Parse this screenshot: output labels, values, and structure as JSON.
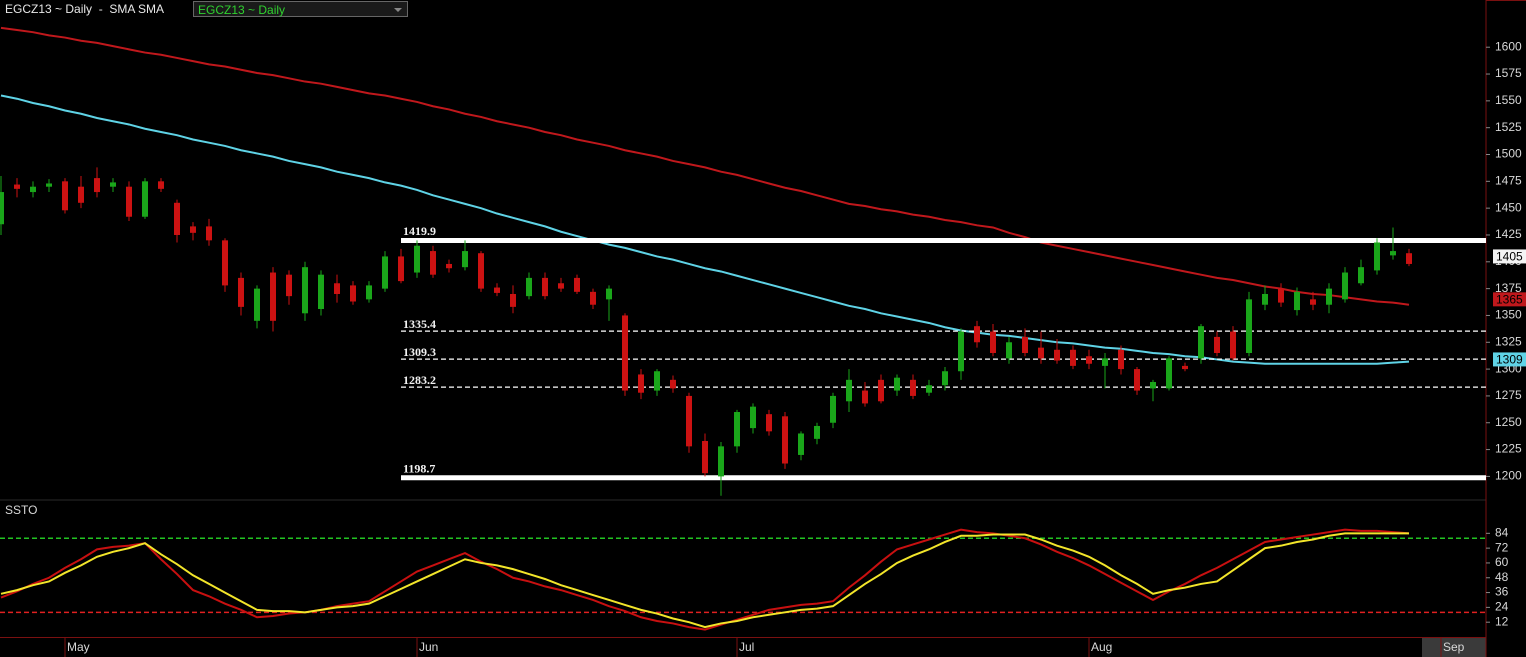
{
  "header": {
    "symbol_title": "EGCZ13 ~ Daily  -  SMA SMA",
    "dropdown": "EGCZ13 ~ Daily"
  },
  "chart_data": [
    {
      "type": "candlestick",
      "categories": [
        null,
        null,
        null,
        null,
        "May",
        null,
        null,
        null,
        null,
        null,
        null,
        null,
        null,
        null,
        null,
        null,
        null,
        null,
        null,
        null,
        null,
        null,
        null,
        null,
        null,
        null,
        "Jun",
        null,
        null,
        null,
        null,
        null,
        null,
        null,
        null,
        null,
        null,
        null,
        null,
        null,
        null,
        null,
        null,
        null,
        null,
        null,
        "Jul",
        null,
        null,
        null,
        null,
        null,
        null,
        null,
        null,
        null,
        null,
        null,
        null,
        null,
        null,
        null,
        null,
        null,
        null,
        null,
        null,
        null,
        "Aug",
        null,
        null,
        null,
        null,
        null,
        null,
        null,
        null,
        null,
        null,
        null,
        null,
        null,
        null,
        null,
        null,
        null,
        null,
        null,
        null,
        null,
        "Sep"
      ],
      "open": [
        1435,
        1472,
        1465,
        1470,
        1475,
        1470,
        1478,
        1470,
        1470,
        1442,
        1475,
        1455,
        1433,
        1433,
        1420,
        1385,
        1345,
        1390,
        1388,
        1352,
        1356,
        1380,
        1378,
        1365,
        1375,
        1405,
        1390,
        1410,
        1398,
        1395,
        1408,
        1376,
        1370,
        1368,
        1385,
        1380,
        1385,
        1372,
        1365,
        1350,
        1295,
        1280,
        1290,
        1275,
        1233,
        1200,
        1228,
        1245,
        1258,
        1256,
        1220,
        1235,
        1250,
        1270,
        1280,
        1290,
        1280,
        1290,
        1278,
        1285,
        1298,
        1340,
        1335,
        1310,
        1330,
        1320,
        1318,
        1318,
        1312,
        1303,
        1318,
        1300,
        1282,
        1282,
        1303,
        1310,
        1330,
        1335,
        1315,
        1360,
        1375,
        1355,
        1365,
        1360,
        1365,
        1380,
        1392,
        1406,
        1408,
        null,
        null
      ],
      "high": [
        1480,
        1478,
        1475,
        1477,
        1478,
        1480,
        1488,
        1478,
        1475,
        1478,
        1478,
        1458,
        1437,
        1440,
        1422,
        1390,
        1378,
        1395,
        1392,
        1400,
        1392,
        1388,
        1382,
        1382,
        1410,
        1412,
        1420,
        1415,
        1402,
        1420,
        1410,
        1380,
        1378,
        1390,
        1390,
        1385,
        1388,
        1375,
        1378,
        1352,
        1300,
        1300,
        1294,
        1278,
        1240,
        1232,
        1262,
        1268,
        1262,
        1260,
        1242,
        1250,
        1278,
        1300,
        1288,
        1295,
        1295,
        1295,
        1290,
        1302,
        1338,
        1345,
        1342,
        1330,
        1338,
        1335,
        1328,
        1322,
        1318,
        1315,
        1322,
        1302,
        1290,
        1312,
        1306,
        1342,
        1335,
        1340,
        1372,
        1378,
        1380,
        1376,
        1372,
        1380,
        1395,
        1402,
        1422,
        1432,
        1412,
        null,
        null
      ],
      "low": [
        1425,
        1460,
        1460,
        1465,
        1445,
        1450,
        1460,
        1465,
        1438,
        1440,
        1465,
        1418,
        1420,
        1415,
        1372,
        1350,
        1338,
        1335,
        1360,
        1345,
        1350,
        1362,
        1360,
        1362,
        1372,
        1380,
        1385,
        1385,
        1390,
        1392,
        1372,
        1368,
        1352,
        1365,
        1365,
        1372,
        1370,
        1356,
        1345,
        1275,
        1272,
        1275,
        1278,
        1222,
        1200,
        1182,
        1222,
        1240,
        1238,
        1207,
        1215,
        1230,
        1245,
        1260,
        1265,
        1268,
        1275,
        1272,
        1275,
        1280,
        1290,
        1320,
        1312,
        1305,
        1312,
        1305,
        1305,
        1300,
        1300,
        1282,
        1295,
        1276,
        1270,
        1280,
        1298,
        1305,
        1312,
        1308,
        1312,
        1355,
        1358,
        1350,
        1355,
        1352,
        1362,
        1378,
        1388,
        1402,
        1396,
        null,
        null
      ],
      "close": [
        1465,
        1468,
        1470,
        1473,
        1448,
        1455,
        1465,
        1474,
        1442,
        1475,
        1468,
        1425,
        1427,
        1420,
        1378,
        1358,
        1375,
        1345,
        1368,
        1395,
        1388,
        1370,
        1363,
        1378,
        1405,
        1382,
        1415,
        1388,
        1394,
        1410,
        1375,
        1371,
        1358,
        1385,
        1368,
        1375,
        1372,
        1360,
        1375,
        1280,
        1278,
        1298,
        1282,
        1228,
        1203,
        1228,
        1260,
        1265,
        1242,
        1212,
        1240,
        1247,
        1275,
        1290,
        1268,
        1270,
        1292,
        1275,
        1285,
        1298,
        1335,
        1325,
        1315,
        1325,
        1315,
        1310,
        1308,
        1303,
        1305,
        1310,
        1300,
        1280,
        1288,
        1310,
        1300,
        1340,
        1315,
        1310,
        1365,
        1370,
        1362,
        1372,
        1360,
        1375,
        1390,
        1395,
        1418,
        1410,
        1398,
        null,
        null
      ],
      "up_color": "#1aa61a",
      "down_color": "#cc1212",
      "overlays": [
        {
          "color": "#c0181c",
          "values": [
            1618,
            1616,
            1614,
            1611,
            1609,
            1606,
            1604,
            1601,
            1598,
            1595,
            1593,
            1590,
            1587,
            1584,
            1582,
            1579,
            1576,
            1574,
            1571,
            1568,
            1566,
            1563,
            1560,
            1557,
            1555,
            1552,
            1549,
            1545,
            1542,
            1538,
            1535,
            1531,
            1528,
            1525,
            1521,
            1518,
            1514,
            1511,
            1508,
            1504,
            1501,
            1498,
            1494,
            1491,
            1488,
            1484,
            1481,
            1477,
            1473,
            1469,
            1466,
            1462,
            1458,
            1454,
            1452,
            1449,
            1447,
            1444,
            1442,
            1439,
            1437,
            1434,
            1432,
            1427,
            1423,
            1418,
            1415,
            1412,
            1409,
            1406,
            1403,
            1400,
            1397,
            1394,
            1391,
            1388,
            1385,
            1383,
            1380,
            1377,
            1375,
            1372,
            1370,
            1369,
            1367,
            1365,
            1363,
            1362,
            1360,
            null,
            null
          ]
        },
        {
          "color": "#5fd3e6",
          "values": [
            1555,
            1552,
            1548,
            1545,
            1541,
            1538,
            1534,
            1531,
            1528,
            1524,
            1521,
            1518,
            1514,
            1511,
            1508,
            1504,
            1501,
            1498,
            1494,
            1491,
            1488,
            1484,
            1481,
            1478,
            1474,
            1471,
            1467,
            1462,
            1458,
            1454,
            1450,
            1445,
            1441,
            1437,
            1433,
            1428,
            1424,
            1420,
            1416,
            1413,
            1409,
            1405,
            1402,
            1398,
            1394,
            1391,
            1387,
            1383,
            1379,
            1375,
            1371,
            1367,
            1363,
            1359,
            1356,
            1352,
            1349,
            1346,
            1343,
            1339,
            1336,
            1334,
            1332,
            1331,
            1329,
            1327,
            1325,
            1324,
            1322,
            1320,
            1319,
            1317,
            1315,
            1314,
            1312,
            1311,
            1309,
            1307,
            1306,
            1305,
            1305,
            1305,
            1305,
            1305,
            1305,
            1305,
            1305,
            1306,
            1307,
            null,
            null
          ]
        }
      ],
      "levels": [
        {
          "value": 1419.9,
          "style": "solid"
        },
        {
          "value": 1335.4,
          "style": "dashed"
        },
        {
          "value": 1309.3,
          "style": "dashed"
        },
        {
          "value": 1283.2,
          "style": "dashed"
        },
        {
          "value": 1198.7,
          "style": "solid"
        }
      ],
      "price_tags": [
        {
          "value": 1405,
          "bg": "#f4f4f4",
          "fg": "#000000"
        },
        {
          "value": 1365,
          "bg": "#c0181c",
          "fg": "#000000"
        },
        {
          "value": 1309,
          "bg": "#5fd3e6",
          "fg": "#000000"
        }
      ],
      "ylim": [
        1178,
        1644
      ],
      "yticks": [
        1200,
        1225,
        1250,
        1275,
        1300,
        1325,
        1350,
        1375,
        1400,
        1425,
        1450,
        1475,
        1500,
        1525,
        1550,
        1575,
        1600
      ]
    },
    {
      "type": "line",
      "title": "SSTO",
      "series": [
        {
          "color": "#c81010",
          "values": [
            32,
            37,
            43,
            48,
            56,
            63,
            71,
            73,
            74,
            76,
            63,
            51,
            38,
            33,
            27,
            22,
            16,
            17,
            19,
            20,
            22,
            25,
            27,
            29,
            37,
            45,
            53,
            58,
            63,
            68,
            61,
            55,
            48,
            45,
            41,
            38,
            34,
            30,
            25,
            21,
            16,
            13,
            11,
            8,
            6,
            10,
            14,
            18,
            22,
            24,
            26,
            27,
            29,
            40,
            50,
            61,
            71,
            75,
            79,
            83,
            87,
            85,
            84,
            82,
            80,
            75,
            69,
            64,
            58,
            51,
            44,
            37,
            30,
            37,
            43,
            50,
            56,
            63,
            70,
            77,
            79,
            81,
            83,
            85,
            87,
            86,
            86,
            85,
            84,
            null,
            null
          ]
        },
        {
          "color": "#f2e52a",
          "values": [
            35,
            38,
            42,
            45,
            52,
            58,
            65,
            69,
            72,
            76,
            67,
            59,
            50,
            43,
            36,
            29,
            22,
            21,
            21,
            20,
            22,
            24,
            25,
            27,
            33,
            39,
            45,
            51,
            57,
            63,
            60,
            58,
            55,
            51,
            47,
            42,
            38,
            34,
            30,
            26,
            22,
            19,
            15,
            12,
            8,
            11,
            13,
            16,
            18,
            20,
            22,
            23,
            25,
            34,
            43,
            51,
            60,
            66,
            71,
            77,
            82,
            82,
            83,
            83,
            83,
            79,
            74,
            70,
            65,
            58,
            50,
            43,
            35,
            38,
            40,
            43,
            45,
            54,
            63,
            72,
            74,
            77,
            79,
            82,
            84,
            84,
            84,
            84,
            84,
            null,
            null
          ]
        }
      ],
      "levels": [
        {
          "value": 80,
          "color": "#22c322"
        },
        {
          "value": 20,
          "color": "#e02020"
        }
      ],
      "ylim": [
        0,
        111
      ],
      "yticks": [
        12,
        24,
        36,
        48,
        60,
        72,
        84
      ]
    }
  ]
}
